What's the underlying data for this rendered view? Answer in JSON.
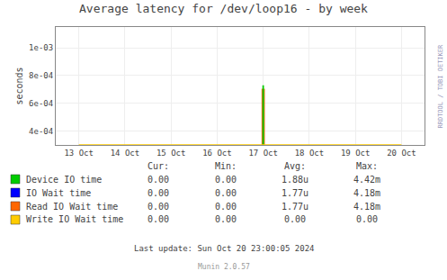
{
  "chart_data": {
    "type": "bar",
    "title": "Average latency for /dev/loop16 - by week",
    "ylabel": "seconds",
    "categories": [
      "13 Oct",
      "14 Oct",
      "15 Oct",
      "16 Oct",
      "17 Oct",
      "18 Oct",
      "19 Oct",
      "20 Oct"
    ],
    "ylim": [
      0.0003,
      0.00115
    ],
    "yticks": [
      {
        "value": 0.0004,
        "label": "4e-04"
      },
      {
        "value": 0.0006,
        "label": "6e-04"
      },
      {
        "value": 0.0008,
        "label": "8e-04"
      },
      {
        "value": 0.001,
        "label": "1e-03"
      }
    ],
    "grid": true,
    "series": [
      {
        "name": "Device IO time",
        "color": "#00cc00",
        "values": [
          null,
          null,
          null,
          null,
          0.00073,
          null,
          null,
          null
        ],
        "table_values": [
          "0.00",
          "0.00",
          "1.88u",
          "4.42m"
        ]
      },
      {
        "name": "IO Wait time",
        "color": "#0000ff",
        "type": "line",
        "values": [
          null,
          null,
          null,
          null,
          null,
          null,
          null,
          null
        ],
        "table_values": [
          "0.00",
          "0.00",
          "1.77u",
          "4.18m"
        ]
      },
      {
        "name": "Read IO Wait time",
        "color": "#ff6600",
        "values": [
          null,
          null,
          null,
          null,
          0.000705,
          null,
          null,
          null
        ],
        "table_values": [
          "0.00",
          "0.00",
          "1.77u",
          "4.18m"
        ]
      },
      {
        "name": "Write IO Wait time",
        "color": "#ffcc00",
        "type": "line",
        "values": [
          0.0003003,
          0.0003003,
          0.0003003,
          0.0003003,
          0.0003003,
          0.0003003,
          0.0003003,
          0.0003003
        ],
        "table_values": [
          "0.00",
          "0.00",
          "0.00",
          "0.00"
        ]
      }
    ],
    "table_headers": [
      "Cur:",
      "Min:",
      "Avg:",
      "Max:"
    ],
    "annotations": [
      "Last update: Sun Oct 20 23:00:05 2024",
      "Munin 2.0.57",
      "RRDTOOL / TOBI OETIKER"
    ]
  }
}
